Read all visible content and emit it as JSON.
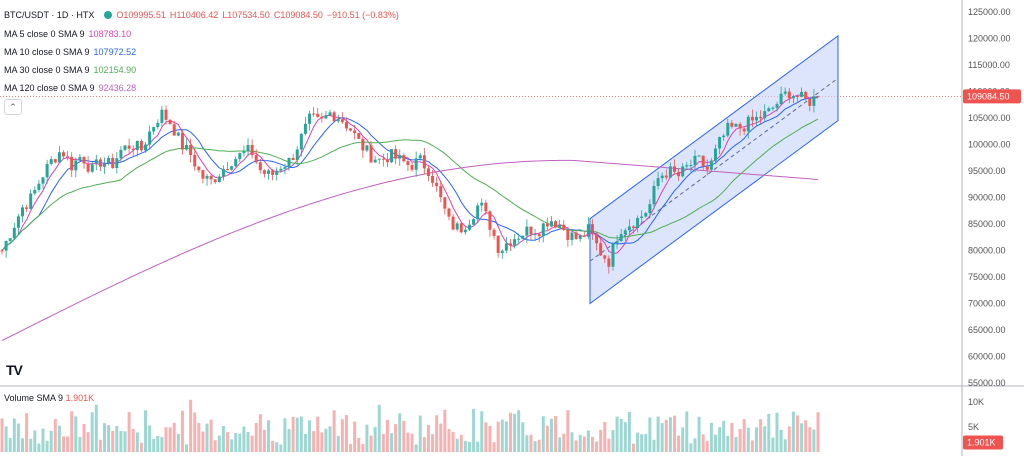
{
  "header": {
    "symbol": "BTC/USDT · 1D · HTX",
    "open": "O109995.51",
    "high": "H110406.42",
    "low": "L107534.50",
    "close": "C109084.50",
    "change": "−910.51 (−0.83%)"
  },
  "indicators": [
    {
      "label": "MA 5 close 0 SMA 9",
      "value": "108783.10",
      "color": "#e040b8"
    },
    {
      "label": "MA 10 close 0 SMA 9",
      "value": "107972.52",
      "color": "#2962ff"
    },
    {
      "label": "MA 30 close 0 SMA 9",
      "value": "102154.90",
      "color": "#4caf50"
    },
    {
      "label": "MA 120 close 0 SMA 9",
      "value": "92436.28",
      "color": "#c060c0"
    }
  ],
  "volume_legend": {
    "label": "Volume SMA 9",
    "value": "1.901K"
  },
  "colors": {
    "up": "#26a69a",
    "down": "#ef5350",
    "channel_fill": "#c5d4f8",
    "channel_line": "#2962ff",
    "price_line": "#ef5350"
  },
  "icons": {
    "visibility": "eye-icon",
    "collapse": "chevron-up-icon",
    "logo": "tradingview-logo"
  },
  "chart_data": {
    "type": "candlestick",
    "price_axis": {
      "ticks": [
        "125000.00",
        "120000.00",
        "115000.00",
        "110000.00",
        "105000.00",
        "100000.00",
        "95000.00",
        "90000.00",
        "85000.00",
        "80000.00",
        "75000.00",
        "70000.00",
        "65000.00",
        "60000.00",
        "55000.00"
      ],
      "ylim": [
        55000,
        125000
      ],
      "current_price_label": "109084.50"
    },
    "volume_axis": {
      "ticks": [
        "10K",
        "5K"
      ],
      "current_label": "1.901K",
      "ylim": [
        0,
        12000
      ]
    },
    "logo_text": "TV",
    "collapse_glyph": "⌃",
    "close_series": [
      80000,
      84000,
      88000,
      90000,
      94000,
      97000,
      99000,
      96000,
      98000,
      95000,
      97000,
      96000,
      99000,
      100000,
      99000,
      103000,
      106000,
      104000,
      100000,
      98000,
      94000,
      93000,
      95000,
      97000,
      98000,
      99000,
      95000,
      94000,
      96000,
      97000,
      101000,
      105000,
      104000,
      106000,
      105000,
      103000,
      100000,
      98000,
      97000,
      98000,
      97000,
      96000,
      97000,
      95000,
      90000,
      85000,
      84000,
      86000,
      89000,
      85000,
      80000,
      82000,
      83000,
      84000,
      84000,
      86000,
      85000,
      83000,
      82000,
      84000,
      80000,
      78000,
      84000,
      85000,
      86000,
      88000,
      94000,
      95000,
      94000,
      96000,
      97000,
      95000,
      100000,
      103000,
      103000,
      104000,
      105000,
      106000,
      108000,
      110000,
      109000,
      108000,
      109084
    ]
  }
}
